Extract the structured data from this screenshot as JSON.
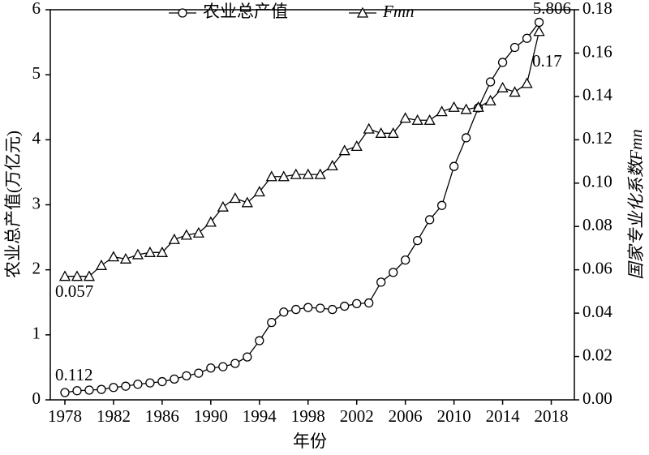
{
  "chart_data": {
    "type": "line",
    "x_label": "年份",
    "y_label": "农业总产值(万亿元)",
    "y2_label": "国家专业化系数Fmn",
    "x": [
      1978,
      1979,
      1980,
      1981,
      1982,
      1983,
      1984,
      1985,
      1986,
      1987,
      1988,
      1989,
      1990,
      1991,
      1992,
      1993,
      1994,
      1995,
      1996,
      1997,
      1998,
      1999,
      2000,
      2001,
      2002,
      2003,
      2004,
      2005,
      2006,
      2007,
      2008,
      2009,
      2010,
      2011,
      2012,
      2013,
      2014,
      2015,
      2016,
      2017
    ],
    "series": [
      {
        "name": "农业总产值",
        "color": "#000000",
        "marker": "circle",
        "values": [
          0.112,
          0.14,
          0.15,
          0.16,
          0.19,
          0.21,
          0.24,
          0.26,
          0.28,
          0.32,
          0.37,
          0.41,
          0.49,
          0.51,
          0.56,
          0.66,
          0.91,
          1.19,
          1.35,
          1.39,
          1.42,
          1.41,
          1.39,
          1.44,
          1.48,
          1.49,
          1.81,
          1.96,
          2.15,
          2.45,
          2.77,
          2.99,
          3.59,
          4.03,
          4.49,
          4.89,
          5.19,
          5.42,
          5.56,
          5.806
        ]
      },
      {
        "name": "Fmn",
        "color": "#000000",
        "marker": "triangle",
        "axis": "y2",
        "values": [
          0.057,
          0.057,
          0.057,
          0.062,
          0.066,
          0.065,
          0.067,
          0.068,
          0.068,
          0.074,
          0.076,
          0.077,
          0.082,
          0.089,
          0.093,
          0.091,
          0.096,
          0.103,
          0.103,
          0.104,
          0.104,
          0.104,
          0.108,
          0.115,
          0.117,
          0.125,
          0.123,
          0.123,
          0.13,
          0.129,
          0.129,
          0.133,
          0.135,
          0.134,
          0.135,
          0.138,
          0.144,
          0.142,
          0.146,
          0.17
        ]
      }
    ],
    "annotations": [
      "5.806",
      "0.17",
      "0.112",
      "0.057"
    ],
    "xlim": [
      1976.8,
      2019.9
    ],
    "xticks": [
      1978,
      1982,
      1986,
      1990,
      1994,
      1998,
      2002,
      2006,
      2010,
      2014,
      2018
    ],
    "ylim": [
      0,
      6
    ],
    "yticks": [
      0,
      1,
      2,
      3,
      4,
      5,
      6
    ],
    "y2lim": [
      0,
      0.18
    ],
    "y2ticks": [
      {
        "value": 0,
        "label": "0.00"
      },
      {
        "value": 0.02,
        "label": "0.02"
      },
      {
        "value": 0.04,
        "label": "0.04"
      },
      {
        "value": 0.06,
        "label": "0.06"
      },
      {
        "value": 0.08,
        "label": "0.08"
      },
      {
        "value": 0.1,
        "label": "0.10"
      },
      {
        "value": 0.12,
        "label": "0.12"
      },
      {
        "value": 0.14,
        "label": "0.14"
      },
      {
        "value": 0.16,
        "label": "0.16"
      },
      {
        "value": 0.18,
        "label": "0.18"
      }
    ],
    "grid": false,
    "legend": "top"
  }
}
